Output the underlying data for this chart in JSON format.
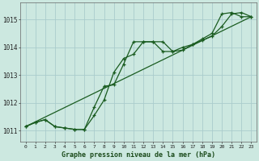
{
  "title": "Graphe pression niveau de la mer (hPa)",
  "bg_color": "#cce8e0",
  "grid_color": "#aacccc",
  "line_color": "#1a5c20",
  "xlim": [
    -0.5,
    23.5
  ],
  "ylim": [
    1010.6,
    1015.6
  ],
  "yticks": [
    1011,
    1012,
    1013,
    1014,
    1015
  ],
  "xtick_labels": [
    "0",
    "1",
    "2",
    "3",
    "4",
    "5",
    "6",
    "7",
    "8",
    "9",
    "10",
    "11",
    "12",
    "13",
    "14",
    "15",
    "16",
    "17",
    "18",
    "19",
    "20",
    "21",
    "22",
    "23"
  ],
  "series1_x": [
    0,
    1,
    2,
    3,
    4,
    5,
    6,
    7,
    8,
    9,
    10,
    11,
    12,
    13,
    14,
    15,
    16,
    17,
    18,
    19,
    20,
    21,
    22,
    23
  ],
  "series1_y": [
    1011.15,
    1011.3,
    1011.4,
    1011.15,
    1011.1,
    1011.05,
    1011.05,
    1011.55,
    1012.1,
    1013.1,
    1013.6,
    1013.75,
    1014.2,
    1014.2,
    1014.2,
    1013.85,
    1013.9,
    1014.1,
    1014.25,
    1014.4,
    1014.75,
    1015.2,
    1015.25,
    1015.1
  ],
  "series2_x": [
    0,
    1,
    2,
    3,
    4,
    5,
    6,
    7,
    8,
    9,
    10,
    11,
    12,
    13,
    14,
    15,
    16,
    17,
    18,
    19,
    20,
    21,
    22,
    23
  ],
  "series2_y": [
    1011.15,
    1011.3,
    1011.4,
    1011.15,
    1011.1,
    1011.05,
    1011.05,
    1011.85,
    1012.6,
    1012.65,
    1013.4,
    1014.2,
    1014.2,
    1014.2,
    1013.85,
    1013.85,
    1014.0,
    1014.1,
    1014.3,
    1014.5,
    1015.2,
    1015.25,
    1015.1,
    1015.1
  ],
  "trend_x": [
    0,
    23
  ],
  "trend_y": [
    1011.15,
    1015.1
  ]
}
